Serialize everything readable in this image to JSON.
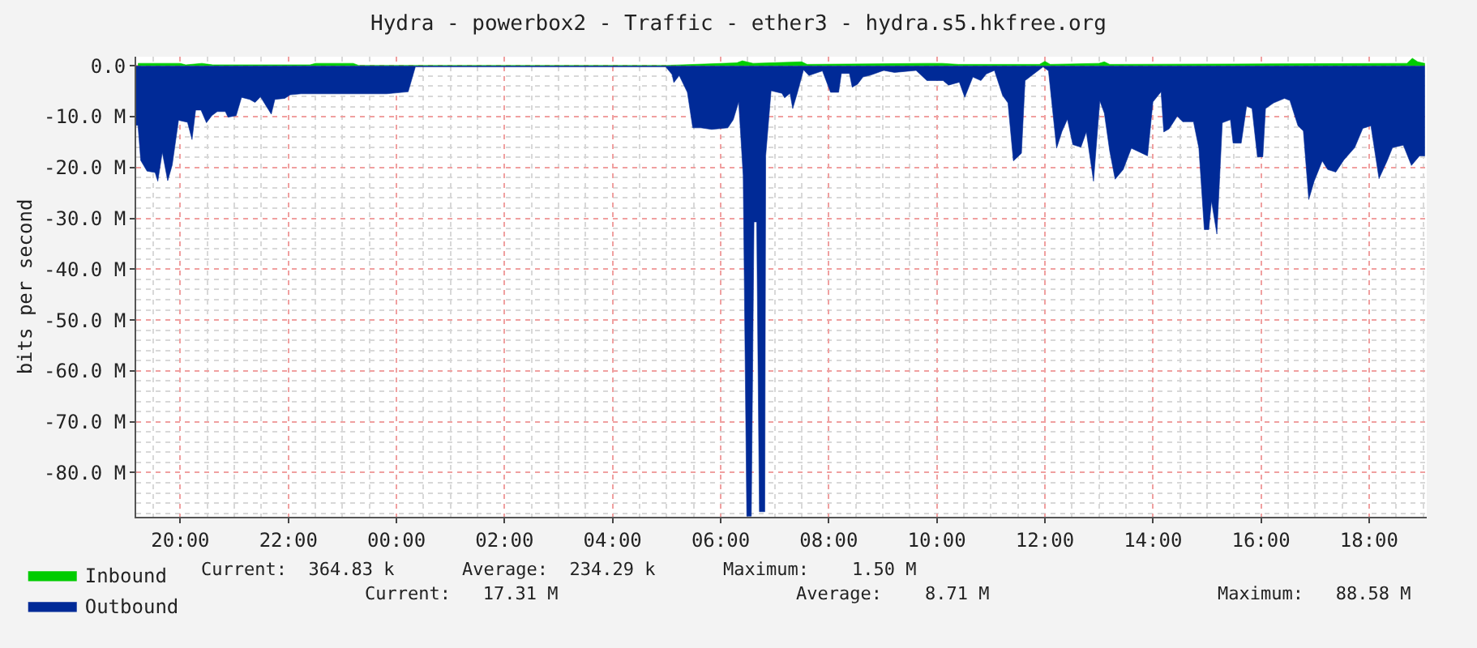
{
  "chart_data": {
    "type": "area",
    "title": "Hydra - powerbox2 - Traffic - ether3 - hydra.s5.hkfree.org",
    "ylabel": "bits per second",
    "xlim": [
      "2000-01-01T19:11",
      "2000-01-02T19:04"
    ],
    "ylim": [
      -88.7,
      1.8
    ],
    "xticks": [
      {
        "value": "2000-01-01T20:00",
        "label": "20:00"
      },
      {
        "value": "2000-01-01T22:00",
        "label": "22:00"
      },
      {
        "value": "2000-01-02T00:00",
        "label": "00:00"
      },
      {
        "value": "2000-01-02T02:00",
        "label": "02:00"
      },
      {
        "value": "2000-01-02T04:00",
        "label": "04:00"
      },
      {
        "value": "2000-01-02T06:00",
        "label": "06:00"
      },
      {
        "value": "2000-01-02T08:00",
        "label": "08:00"
      },
      {
        "value": "2000-01-02T10:00",
        "label": "10:00"
      },
      {
        "value": "2000-01-02T12:00",
        "label": "12:00"
      },
      {
        "value": "2000-01-02T14:00",
        "label": "14:00"
      },
      {
        "value": "2000-01-02T16:00",
        "label": "16:00"
      },
      {
        "value": "2000-01-02T18:00",
        "label": "18:00"
      }
    ],
    "yticks": [
      {
        "value": 0,
        "label": "0.0"
      },
      {
        "value": -10,
        "label": "-10.0 M"
      },
      {
        "value": -20,
        "label": "-20.0 M"
      },
      {
        "value": -30,
        "label": "-30.0 M"
      },
      {
        "value": -40,
        "label": "-40.0 M"
      },
      {
        "value": -50,
        "label": "-50.0 M"
      },
      {
        "value": -60,
        "label": "-60.0 M"
      },
      {
        "value": -70,
        "label": "-70.0 M"
      },
      {
        "value": -80,
        "label": "-80.0 M"
      }
    ],
    "grid": true,
    "legend": "bottom",
    "series": [
      {
        "name": "Inbound",
        "color": "#00cc00",
        "x": [
          "2000-01-01T19:13",
          "2000-01-01T20:00",
          "2000-01-01T20:06",
          "2000-01-01T20:24",
          "2000-01-01T20:36",
          "2000-01-01T22:24",
          "2000-01-01T22:30",
          "2000-01-01T23:12",
          "2000-01-01T23:18",
          "2000-01-02T00:21",
          "2000-01-02T05:00",
          "2000-01-02T06:18",
          "2000-01-02T06:24",
          "2000-01-02T06:36",
          "2000-01-02T07:30",
          "2000-01-02T07:36",
          "2000-01-02T09:48",
          "2000-01-02T10:06",
          "2000-01-02T10:24",
          "2000-01-02T11:54",
          "2000-01-02T12:00",
          "2000-01-02T12:06",
          "2000-01-02T13:00",
          "2000-01-02T13:06",
          "2000-01-02T13:12",
          "2000-01-02T16:06",
          "2000-01-02T18:42",
          "2000-01-02T18:48",
          "2000-01-02T18:54",
          "2000-01-02T19:02"
        ],
        "values": [
          0.5,
          0.5,
          0.2,
          0.5,
          0.2,
          0.2,
          0.5,
          0.5,
          0.1,
          0.1,
          0.1,
          0.6,
          1.0,
          0.5,
          0.8,
          0.3,
          0.5,
          0.5,
          0.3,
          0.3,
          0.9,
          0.3,
          0.5,
          0.8,
          0.3,
          0.4,
          0.5,
          1.5,
          0.8,
          0.5
        ]
      },
      {
        "name": "Outbound",
        "color": "#002a97",
        "x": [
          "2000-01-01T19:11",
          "2000-01-01T19:13",
          "2000-01-01T19:16",
          "2000-01-01T19:23",
          "2000-01-01T19:32",
          "2000-01-01T19:35",
          "2000-01-01T19:40",
          "2000-01-01T19:46",
          "2000-01-01T19:51",
          "2000-01-01T19:58",
          "2000-01-01T20:08",
          "2000-01-01T20:13",
          "2000-01-01T20:17",
          "2000-01-01T20:23",
          "2000-01-01T20:29",
          "2000-01-01T20:35",
          "2000-01-01T20:41",
          "2000-01-01T20:50",
          "2000-01-01T20:53",
          "2000-01-01T21:02",
          "2000-01-01T21:08",
          "2000-01-01T21:17",
          "2000-01-01T21:23",
          "2000-01-01T21:29",
          "2000-01-01T21:41",
          "2000-01-01T21:45",
          "2000-01-01T21:56",
          "2000-01-01T22:02",
          "2000-01-01T22:14",
          "2000-01-01T23:49",
          "2000-01-02T00:13",
          "2000-01-02T00:21",
          "2000-01-02T04:59",
          "2000-01-02T05:06",
          "2000-01-02T05:08",
          "2000-01-02T05:14",
          "2000-01-02T05:23",
          "2000-01-02T05:29",
          "2000-01-02T05:38",
          "2000-01-02T05:50",
          "2000-01-02T06:08",
          "2000-01-02T06:14",
          "2000-01-02T06:20",
          "2000-01-02T06:25",
          "2000-01-02T06:29",
          "2000-01-02T06:34",
          "2000-01-02T06:37",
          "2000-01-02T06:40",
          "2000-01-02T06:43",
          "2000-01-02T06:49",
          "2000-01-02T06:50",
          "2000-01-02T06:56",
          "2000-01-02T07:08",
          "2000-01-02T07:11",
          "2000-01-02T07:17",
          "2000-01-02T07:20",
          "2000-01-02T07:25",
          "2000-01-02T07:32",
          "2000-01-02T07:38",
          "2000-01-02T07:53",
          "2000-01-02T08:02",
          "2000-01-02T08:11",
          "2000-01-02T08:14",
          "2000-01-02T08:23",
          "2000-01-02T08:26",
          "2000-01-02T08:32",
          "2000-01-02T08:38",
          "2000-01-02T08:47",
          "2000-01-02T09:01",
          "2000-01-02T09:13",
          "2000-01-02T09:37",
          "2000-01-02T09:49",
          "2000-01-02T10:07",
          "2000-01-02T10:13",
          "2000-01-02T10:25",
          "2000-01-02T10:31",
          "2000-01-02T10:40",
          "2000-01-02T10:49",
          "2000-01-02T10:55",
          "2000-01-02T11:04",
          "2000-01-02T11:13",
          "2000-01-02T11:19",
          "2000-01-02T11:25",
          "2000-01-02T11:34",
          "2000-01-02T11:38",
          "2000-01-02T11:58",
          "2000-01-02T12:04",
          "2000-01-02T12:13",
          "2000-01-02T12:19",
          "2000-01-02T12:25",
          "2000-01-02T12:31",
          "2000-01-02T12:40",
          "2000-01-02T12:46",
          "2000-01-02T12:54",
          "2000-01-02T13:01",
          "2000-01-02T13:06",
          "2000-01-02T13:12",
          "2000-01-02T13:18",
          "2000-01-02T13:27",
          "2000-01-02T13:36",
          "2000-01-02T13:54",
          "2000-01-02T14:00",
          "2000-01-02T14:09",
          "2000-01-02T14:12",
          "2000-01-02T14:18",
          "2000-01-02T14:27",
          "2000-01-02T14:33",
          "2000-01-02T14:45",
          "2000-01-02T14:51",
          "2000-01-02T14:57",
          "2000-01-02T15:02",
          "2000-01-02T15:05",
          "2000-01-02T15:11",
          "2000-01-02T15:17",
          "2000-01-02T15:26",
          "2000-01-02T15:29",
          "2000-01-02T15:38",
          "2000-01-02T15:44",
          "2000-01-02T15:50",
          "2000-01-02T15:56",
          "2000-01-02T16:02",
          "2000-01-02T16:05",
          "2000-01-02T16:14",
          "2000-01-02T16:26",
          "2000-01-02T16:32",
          "2000-01-02T16:41",
          "2000-01-02T16:47",
          "2000-01-02T16:53",
          "2000-01-02T16:59",
          "2000-01-02T17:08",
          "2000-01-02T17:14",
          "2000-01-02T17:23",
          "2000-01-02T17:32",
          "2000-01-02T17:44",
          "2000-01-02T17:53",
          "2000-01-02T18:02",
          "2000-01-02T18:11",
          "2000-01-02T18:20",
          "2000-01-02T18:26",
          "2000-01-02T18:38",
          "2000-01-02T18:47",
          "2000-01-02T18:56",
          "2000-01-02T19:02"
        ],
        "values": [
          -11.7,
          -11.7,
          -18.6,
          -20.7,
          -21,
          -22.7,
          -17,
          -22.6,
          -19.5,
          -10.7,
          -11.1,
          -14.5,
          -8.7,
          -8.7,
          -11.2,
          -9.8,
          -9,
          -9,
          -10.1,
          -9.8,
          -6.2,
          -6.6,
          -7.2,
          -6.1,
          -9.5,
          -6.6,
          -6.4,
          -5.7,
          -5.5,
          -5.5,
          -5.1,
          -0.2,
          -0.2,
          -1.7,
          -3.3,
          -1.9,
          -5.2,
          -12.2,
          -12.2,
          -12.5,
          -12.2,
          -10.6,
          -7.1,
          -21.6,
          -88.58,
          -88.58,
          -30.7,
          -30.7,
          -87.7,
          -87.7,
          -17.7,
          -4.9,
          -5.4,
          -6.3,
          -5.4,
          -8.4,
          -5.4,
          -0.8,
          -1.9,
          -1,
          -5.2,
          -5.2,
          -1.5,
          -1.5,
          -4.2,
          -3.6,
          -2.2,
          -1.8,
          -0.9,
          -1.3,
          -0.9,
          -2.9,
          -2.9,
          -3.8,
          -3.2,
          -6.2,
          -2.2,
          -2.9,
          -1.6,
          -0.9,
          -5.8,
          -7.3,
          -18.7,
          -17.2,
          -2.9,
          -0.2,
          -1,
          -16.2,
          -12.9,
          -10.5,
          -15.5,
          -16,
          -13,
          -22.7,
          -6.9,
          -9.3,
          -16.8,
          -22.3,
          -20.4,
          -16.2,
          -17.7,
          -7.1,
          -5.1,
          -13,
          -12.4,
          -9.9,
          -11,
          -11,
          -16.2,
          -32.2,
          -32.2,
          -26.6,
          -33.1,
          -11.2,
          -10.6,
          -15.2,
          -15.2,
          -7.9,
          -8.4,
          -17.9,
          -17.9,
          -8.4,
          -7.3,
          -6.4,
          -6.8,
          -11.8,
          -12.8,
          -26.3,
          -22.7,
          -18.7,
          -20.4,
          -20.9,
          -18.5,
          -16.1,
          -12.3,
          -11.8,
          -22.2,
          -18.7,
          -16.1,
          -15.6,
          -19.6,
          -17.7,
          -17.7
        ]
      }
    ],
    "annotations": [
      "Current:  364.83 k",
      "Average:  234.29 k",
      "Maximum:    1.50 M",
      "Current:   17.31 M",
      "Average:    8.71 M",
      "Maximum:   88.58 M"
    ]
  }
}
